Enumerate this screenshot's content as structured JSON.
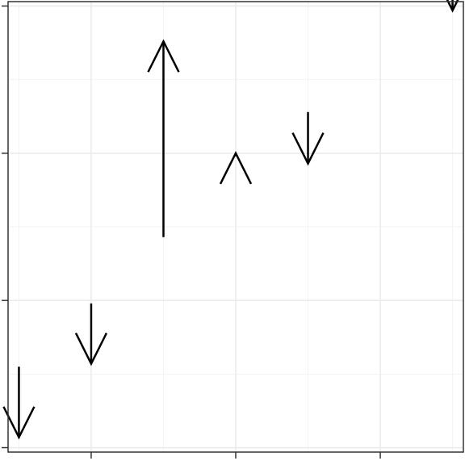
{
  "chart_data": {
    "type": "scatter",
    "mark": "vertical-arrow",
    "title": "",
    "xlabel": "",
    "ylabel": "",
    "grid": true,
    "xlim": [
      0.85,
      7.15
    ],
    "ylim": [
      -0.03,
      3.03
    ],
    "xticks": [
      2,
      4,
      6
    ],
    "yticks": [
      0,
      1,
      2,
      3
    ],
    "xminor": [
      1,
      3,
      5,
      7
    ],
    "yminor": [
      0.5,
      1.5,
      2.5
    ],
    "arrows": [
      {
        "x": 1,
        "y_start": 0.55,
        "y_end": 0.07
      },
      {
        "x": 2,
        "y_start": 0.98,
        "y_end": 0.57
      },
      {
        "x": 3,
        "y_start": 1.43,
        "y_end": 2.76
      },
      {
        "x": 4,
        "y_start": 1.98,
        "y_end": 2.0
      },
      {
        "x": 5,
        "y_start": 2.28,
        "y_end": 1.93
      },
      {
        "x": 7,
        "y_start": 3.1,
        "y_end": 2.97
      }
    ]
  }
}
